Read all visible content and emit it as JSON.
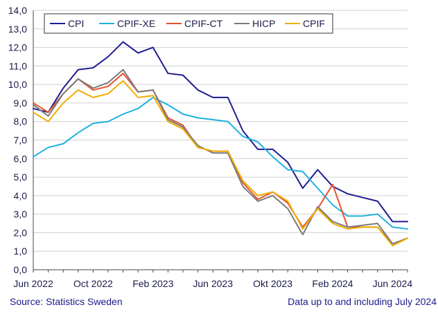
{
  "footer": {
    "source": "Source: Statistics Sweden",
    "note": "Data up to and including July 2024"
  },
  "chart_data": {
    "type": "line",
    "title": "",
    "xlabel": "",
    "ylabel": "",
    "ylim": [
      0,
      14
    ],
    "y_ticks": [
      "0,0",
      "1,0",
      "2,0",
      "3,0",
      "4,0",
      "5,0",
      "6,0",
      "7,0",
      "8,0",
      "9,0",
      "10,0",
      "11,0",
      "12,0",
      "13,0",
      "14,0"
    ],
    "x_tick_labels": [
      {
        "index": 0,
        "label": "Jun 2022"
      },
      {
        "index": 4,
        "label": "Oct 2022"
      },
      {
        "index": 8,
        "label": "Feb 2023"
      },
      {
        "index": 12,
        "label": "Jun 2023"
      },
      {
        "index": 16,
        "label": "Okt 2023"
      },
      {
        "index": 20,
        "label": "Feb 2024"
      },
      {
        "index": 24,
        "label": "Jun 2024"
      }
    ],
    "x": [
      "2022-06",
      "2022-07",
      "2022-08",
      "2022-09",
      "2022-10",
      "2022-11",
      "2022-12",
      "2023-01",
      "2023-02",
      "2023-03",
      "2023-04",
      "2023-05",
      "2023-06",
      "2023-07",
      "2023-08",
      "2023-09",
      "2023-10",
      "2023-11",
      "2023-12",
      "2024-01",
      "2024-02",
      "2024-03",
      "2024-04",
      "2024-05",
      "2024-06",
      "2024-07"
    ],
    "grid": true,
    "legend_position": "top-left",
    "series": [
      {
        "name": "CPI",
        "color": "#1d1d8f",
        "values": [
          8.7,
          8.5,
          9.8,
          10.8,
          10.9,
          11.5,
          12.3,
          11.7,
          12.0,
          10.6,
          10.5,
          9.7,
          9.3,
          9.3,
          7.5,
          6.5,
          6.5,
          5.8,
          4.4,
          5.4,
          4.5,
          4.1,
          3.9,
          3.7,
          2.6,
          2.6
        ]
      },
      {
        "name": "CPIF-XE",
        "color": "#1fb0e0",
        "values": [
          6.1,
          6.6,
          6.8,
          7.4,
          7.9,
          8.0,
          8.4,
          8.7,
          9.3,
          8.9,
          8.4,
          8.2,
          8.1,
          8.0,
          7.2,
          6.9,
          6.1,
          5.4,
          5.3,
          4.4,
          3.5,
          2.9,
          2.9,
          3.0,
          2.3,
          2.2
        ]
      },
      {
        "name": "CPIF-CT",
        "color": "#e8502e",
        "values": [
          9.0,
          8.5,
          9.5,
          10.3,
          9.7,
          9.9,
          10.6,
          9.6,
          9.7,
          8.2,
          7.8,
          6.6,
          6.4,
          6.4,
          4.7,
          3.8,
          4.2,
          3.6,
          2.3,
          3.3,
          4.6,
          2.3,
          2.3,
          2.3,
          1.4,
          1.7
        ]
      },
      {
        "name": "HICP",
        "color": "#7a7a7a",
        "values": [
          8.9,
          8.3,
          9.5,
          10.3,
          9.8,
          10.1,
          10.8,
          9.6,
          9.7,
          8.1,
          7.7,
          6.7,
          6.3,
          6.3,
          4.5,
          3.7,
          4.0,
          3.3,
          1.9,
          3.4,
          2.6,
          2.3,
          2.4,
          2.5,
          1.4,
          1.7
        ]
      },
      {
        "name": "CPIF",
        "color": "#f0ad00",
        "values": [
          8.5,
          8.0,
          9.0,
          9.7,
          9.3,
          9.5,
          10.2,
          9.3,
          9.4,
          8.0,
          7.6,
          6.6,
          6.4,
          6.4,
          4.8,
          4.0,
          4.2,
          3.7,
          2.2,
          3.3,
          2.5,
          2.2,
          2.3,
          2.3,
          1.3,
          1.7
        ]
      }
    ]
  }
}
